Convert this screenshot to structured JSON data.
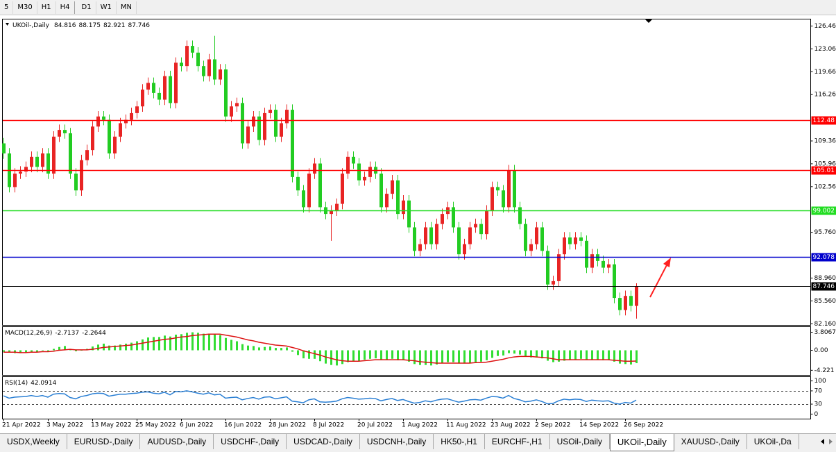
{
  "toolbar": {
    "timeframes": [
      "5",
      "M30",
      "H1",
      "H4",
      "D1",
      "W1",
      "MN"
    ]
  },
  "tabs": [
    "USDX,Weekly",
    "EURUSD-,Daily",
    "AUDUSD-,Daily",
    "USDCHF-,Daily",
    "USDCAD-,Daily",
    "USDCNH-,Daily",
    "HK50-,H1",
    "EURCHF-,H1",
    "USOil-,Daily",
    "UKOil-,Daily",
    "XAUUSD-,Daily",
    "UKOil-,Da"
  ],
  "active_tab": 9,
  "chart_data": [
    {
      "type": "candlestick",
      "title": "UKOil-,Daily",
      "up_color": "#e82424",
      "down_color": "#22cc22",
      "categories": [
        "21 Apr 2022",
        null,
        null,
        null,
        null,
        null,
        null,
        null,
        "3 May 2022",
        null,
        null,
        null,
        null,
        null,
        null,
        null,
        "13 May 2022",
        null,
        null,
        null,
        null,
        null,
        null,
        null,
        "25 May 2022",
        null,
        null,
        null,
        null,
        null,
        null,
        null,
        "6 Jun 2022",
        null,
        null,
        null,
        null,
        null,
        null,
        null,
        "16 Jun 2022",
        null,
        null,
        null,
        null,
        null,
        null,
        null,
        "28 Jun 2022",
        null,
        null,
        null,
        null,
        null,
        null,
        null,
        "8 Jul 2022",
        null,
        null,
        null,
        null,
        null,
        null,
        null,
        "20 Jul 2022",
        null,
        null,
        null,
        null,
        null,
        null,
        null,
        "1 Aug 2022",
        null,
        null,
        null,
        null,
        null,
        null,
        null,
        "11 Aug 2022",
        null,
        null,
        null,
        null,
        null,
        null,
        null,
        "23 Aug 2022",
        null,
        null,
        null,
        null,
        null,
        null,
        null,
        "2 Sep 2022",
        null,
        null,
        null,
        null,
        null,
        null,
        null,
        "14 Sep 2022",
        null,
        null,
        null,
        null,
        null,
        null,
        null,
        "26 Sep 2022",
        null,
        null
      ],
      "open": [
        109,
        107.5,
        102.5,
        104.5,
        104.8,
        105.5,
        107,
        105.5,
        107.5,
        104.5,
        110,
        111,
        110.5,
        104.5,
        102,
        106.5,
        108,
        111.5,
        113,
        112.5,
        107.5,
        110,
        112,
        112.5,
        113.5,
        114.5,
        117,
        118,
        116.5,
        115.5,
        119,
        115,
        121,
        120.5,
        123.5,
        122.5,
        120.5,
        119,
        121.5,
        118.5,
        120,
        113,
        114.5,
        115,
        109,
        111.5,
        113,
        109.5,
        113.5,
        114,
        110,
        112,
        114,
        104,
        102,
        99.5,
        104.5,
        106,
        99.5,
        98.5,
        99,
        100,
        104.5,
        107,
        106,
        103.5,
        104,
        105.5,
        104.5,
        99.5,
        101.5,
        103.5,
        98.5,
        100.5,
        96.5,
        93,
        94,
        96.5,
        94,
        97,
        98.5,
        99.5,
        96.5,
        92.5,
        94,
        96.5,
        97,
        95.5,
        99,
        102.5,
        102,
        99.5,
        105,
        99.5,
        97,
        93,
        94,
        96.5,
        93,
        88,
        88.5,
        92.5,
        95,
        94,
        95,
        94.5,
        90.5,
        92.5,
        91.5,
        90.5,
        91,
        86,
        84.2,
        86.3,
        84.816
      ],
      "high": [
        109.8,
        108.3,
        105.3,
        105.6,
        106.3,
        107.8,
        107.8,
        108.3,
        108.3,
        110.8,
        111.8,
        111.8,
        111.3,
        105.3,
        107.3,
        108.8,
        112.3,
        113.8,
        113.8,
        113.3,
        110.8,
        112.8,
        113.3,
        114.3,
        115.3,
        117.8,
        118.8,
        118.8,
        117.3,
        119.8,
        119.8,
        121.8,
        121.8,
        124.3,
        124.3,
        123.3,
        121.3,
        122.3,
        125,
        120.8,
        120.8,
        115.3,
        115.8,
        115.8,
        112.3,
        113.8,
        113.8,
        114.3,
        114.8,
        114.8,
        112.8,
        114.8,
        114.8,
        104.8,
        102.8,
        105.3,
        106.8,
        106.8,
        100.3,
        99.8,
        100.8,
        105.3,
        107.8,
        107.8,
        106.8,
        104.8,
        106.3,
        106.3,
        105.3,
        102.3,
        104.3,
        104.3,
        101.3,
        101.3,
        97.3,
        94.8,
        97.3,
        97.3,
        97.8,
        99.3,
        100.3,
        100.3,
        97.3,
        94.8,
        97.3,
        97.8,
        97.8,
        99.8,
        103.3,
        103.3,
        102.8,
        105.8,
        105.8,
        100.3,
        97.8,
        94.8,
        97.3,
        97.3,
        93.8,
        89.3,
        93.3,
        95.8,
        95.8,
        95.8,
        95.8,
        95.3,
        93.3,
        93.3,
        92.3,
        91.8,
        91.8,
        86.8,
        87.1,
        87.1,
        88.175
      ],
      "low": [
        106.7,
        101.7,
        101.7,
        103.7,
        104,
        104.7,
        104.7,
        104.7,
        103.7,
        103.7,
        109.2,
        109.7,
        103.7,
        101.2,
        101.2,
        105.7,
        107.2,
        110.7,
        111.7,
        106.7,
        106.7,
        109.2,
        111.2,
        111.7,
        112.7,
        113.7,
        116.2,
        115.7,
        114.7,
        114.7,
        114.2,
        114.2,
        119.7,
        119.7,
        121.7,
        119.7,
        118.2,
        118.2,
        117.7,
        117.7,
        112.2,
        112.2,
        113.7,
        108.2,
        108.2,
        110.7,
        108.7,
        108.7,
        112.7,
        109.2,
        109.2,
        111.2,
        103.2,
        101.2,
        98.7,
        98.7,
        103.7,
        98.7,
        97.7,
        94.5,
        98.2,
        99.2,
        103.7,
        105.2,
        102.7,
        102.7,
        103.2,
        103.7,
        98.7,
        98.7,
        100.7,
        97.7,
        97.7,
        95.7,
        92.2,
        92.2,
        93.2,
        93.2,
        93.2,
        96.2,
        97.7,
        95.7,
        91.7,
        91.7,
        93.2,
        95.7,
        94.7,
        94.7,
        98.2,
        101.2,
        98.7,
        98.7,
        98.7,
        96.2,
        92.2,
        92.2,
        93.2,
        92.2,
        87.2,
        87.2,
        87.7,
        91.7,
        93.2,
        93.2,
        93.7,
        89.7,
        89.7,
        90.7,
        89.7,
        89.7,
        85.2,
        83.4,
        83.4,
        84,
        82.921
      ],
      "close": [
        107.5,
        102.5,
        104.5,
        104.8,
        105.5,
        107,
        105.5,
        107.5,
        104.5,
        110,
        111,
        110.5,
        104.5,
        102,
        106.5,
        108,
        111.5,
        113,
        112.5,
        107.5,
        110,
        112,
        112.5,
        113.5,
        114.5,
        117,
        118,
        116.5,
        115.5,
        119,
        115,
        121,
        120.5,
        123.5,
        122.5,
        120.5,
        119,
        121.5,
        118.5,
        120,
        113,
        114.5,
        115,
        109,
        111.5,
        113,
        109.5,
        113.5,
        114,
        110,
        112,
        114,
        104,
        102,
        99.5,
        104.5,
        106,
        99.5,
        98.5,
        99,
        100,
        104.5,
        107,
        106,
        103.5,
        104,
        105.5,
        104.5,
        99.5,
        101.5,
        103.5,
        98.5,
        100.5,
        96.5,
        93,
        94,
        96.5,
        94,
        97,
        98.5,
        99.5,
        96.5,
        92.5,
        94,
        96.5,
        97,
        95.5,
        99,
        102.5,
        102,
        99.5,
        105,
        99.5,
        97,
        93,
        94,
        96.5,
        93,
        88,
        88.5,
        92.5,
        95,
        94,
        95,
        94.5,
        90.5,
        92.5,
        91.5,
        90.5,
        91,
        86,
        84.2,
        86.3,
        84.816,
        87.746
      ],
      "ylim": [
        81.93,
        127.49
      ],
      "yticks": [
        {
          "value": 126.46,
          "label": "126.460"
        },
        {
          "value": 123.06,
          "label": "123.060"
        },
        {
          "value": 119.66,
          "label": "119.660"
        },
        {
          "value": 116.26,
          "label": "116.260"
        },
        {
          "value": 109.36,
          "label": "109.360"
        },
        {
          "value": 105.96,
          "label": "105.960"
        },
        {
          "value": 102.56,
          "label": "102.560"
        },
        {
          "value": 95.76,
          "label": "95.760"
        },
        {
          "value": 88.96,
          "label": "88.960"
        },
        {
          "value": 85.56,
          "label": "85.560"
        },
        {
          "value": 82.16,
          "label": "82.160"
        }
      ],
      "levels": [
        {
          "value": 112.48,
          "color": "#ff0000"
        },
        {
          "value": 105.01,
          "color": "#ff0000"
        },
        {
          "value": 99.002,
          "color": "#22dd22"
        },
        {
          "value": 92.078,
          "color": "#0000cc"
        },
        {
          "value": 87.746,
          "color": "#000000"
        }
      ],
      "grid": false
    },
    {
      "type": "macd",
      "title": "MACD(12,26,9)",
      "histogram_color": "#33dd33",
      "signal_color": "#dd1111",
      "histogram": [
        -0.3,
        -0.5,
        -0.6,
        -0.6,
        -0.5,
        -0.3,
        -0.3,
        -0.1,
        -0.2,
        0.3,
        0.7,
        0.9,
        0.3,
        -0.2,
        0,
        0.3,
        0.8,
        1.2,
        1.4,
        1,
        1,
        1.2,
        1.4,
        1.6,
        1.9,
        2.3,
        2.7,
        2.8,
        2.8,
        3.1,
        2.9,
        3.3,
        3.4,
        3.7,
        3.8,
        3.7,
        3.5,
        3.5,
        3.3,
        3.2,
        2.6,
        2.2,
        1.9,
        1.3,
        1,
        0.9,
        0.6,
        0.7,
        0.8,
        0.5,
        0.5,
        0.6,
        -0.3,
        -1,
        -1.7,
        -1.8,
        -1.8,
        -2.3,
        -2.8,
        -3.1,
        -3.2,
        -2.9,
        -2.5,
        -2.3,
        -2.2,
        -2,
        -1.8,
        -1.7,
        -2,
        -2,
        -1.8,
        -2.1,
        -2.1,
        -2.4,
        -2.9,
        -3.1,
        -3.1,
        -3.2,
        -3,
        -2.7,
        -2.5,
        -2.5,
        -2.8,
        -2.8,
        -2.7,
        -2.5,
        -2.4,
        -2.1,
        -1.6,
        -1.2,
        -1.1,
        -0.6,
        -0.7,
        -0.9,
        -1.3,
        -1.5,
        -1.5,
        -1.7,
        -2.2,
        -2.5,
        -2.4,
        -2.2,
        -2,
        -1.9,
        -1.8,
        -2,
        -2,
        -2,
        -2.1,
        -2.1,
        -2.4,
        -2.8,
        -2.9,
        -3,
        -2.7137
      ],
      "signal": [
        -0.4,
        -0.4,
        -0.4,
        -0.5,
        -0.5,
        -0.4,
        -0.4,
        -0.3,
        -0.3,
        -0.2,
        0,
        0.1,
        0.2,
        0.1,
        0.1,
        0.1,
        0.2,
        0.4,
        0.6,
        0.7,
        0.8,
        0.9,
        1,
        1.1,
        1.3,
        1.5,
        1.7,
        1.9,
        2.1,
        2.3,
        2.4,
        2.6,
        2.8,
        2.9,
        3.1,
        3.2,
        3.3,
        3.4,
        3.4,
        3.4,
        3.2,
        3,
        2.8,
        2.5,
        2.2,
        2,
        1.7,
        1.5,
        1.3,
        1.1,
        1,
        0.9,
        0.6,
        0.3,
        -0.1,
        -0.4,
        -0.7,
        -1,
        -1.4,
        -1.7,
        -2,
        -2.2,
        -2.3,
        -2.3,
        -2.3,
        -2.2,
        -2.1,
        -2,
        -2,
        -2,
        -2,
        -2,
        -2,
        -2.1,
        -2.2,
        -2.4,
        -2.5,
        -2.6,
        -2.7,
        -2.7,
        -2.7,
        -2.7,
        -2.7,
        -2.7,
        -2.7,
        -2.6,
        -2.6,
        -2.5,
        -2.3,
        -2.1,
        -1.9,
        -1.6,
        -1.4,
        -1.3,
        -1.3,
        -1.3,
        -1.4,
        -1.5,
        -1.6,
        -1.8,
        -2,
        -2,
        -2,
        -2,
        -2,
        -2,
        -2,
        -2,
        -2,
        -2,
        -2.1,
        -2.2,
        -2.3,
        -2.3,
        -2.2644
      ],
      "ylim": [
        -5.27,
        4.98
      ],
      "yticks": [
        3.8067,
        {
          "value": 0,
          "label": "0.00"
        },
        -4.221
      ]
    },
    {
      "type": "line",
      "title": "RSI(14)",
      "color": "#2a7fd4",
      "values": [
        55,
        48,
        51,
        52,
        53,
        56,
        53,
        56,
        51,
        60,
        62,
        61,
        50,
        46,
        53,
        56,
        61,
        63,
        62,
        54,
        57,
        60,
        60,
        62,
        63,
        66,
        67,
        63,
        61,
        66,
        58,
        68,
        67,
        70,
        67,
        63,
        60,
        64,
        58,
        60,
        48,
        50,
        51,
        43,
        47,
        50,
        45,
        51,
        52,
        46,
        49,
        52,
        39,
        37,
        34,
        43,
        46,
        37,
        36,
        37,
        39,
        46,
        50,
        48,
        45,
        46,
        48,
        47,
        40,
        44,
        47,
        41,
        44,
        38,
        33,
        35,
        40,
        37,
        42,
        45,
        46,
        41,
        36,
        39,
        43,
        44,
        42,
        48,
        53,
        52,
        48,
        56,
        47,
        43,
        37,
        39,
        43,
        38,
        31,
        32,
        40,
        45,
        43,
        45,
        44,
        38,
        42,
        40,
        39,
        40,
        33,
        30,
        35,
        33,
        42.0914
      ],
      "ylim": [
        -14.9,
        112.8
      ],
      "yticks": [
        100,
        70,
        30,
        0
      ],
      "dashed_levels": [
        70,
        30
      ]
    }
  ]
}
